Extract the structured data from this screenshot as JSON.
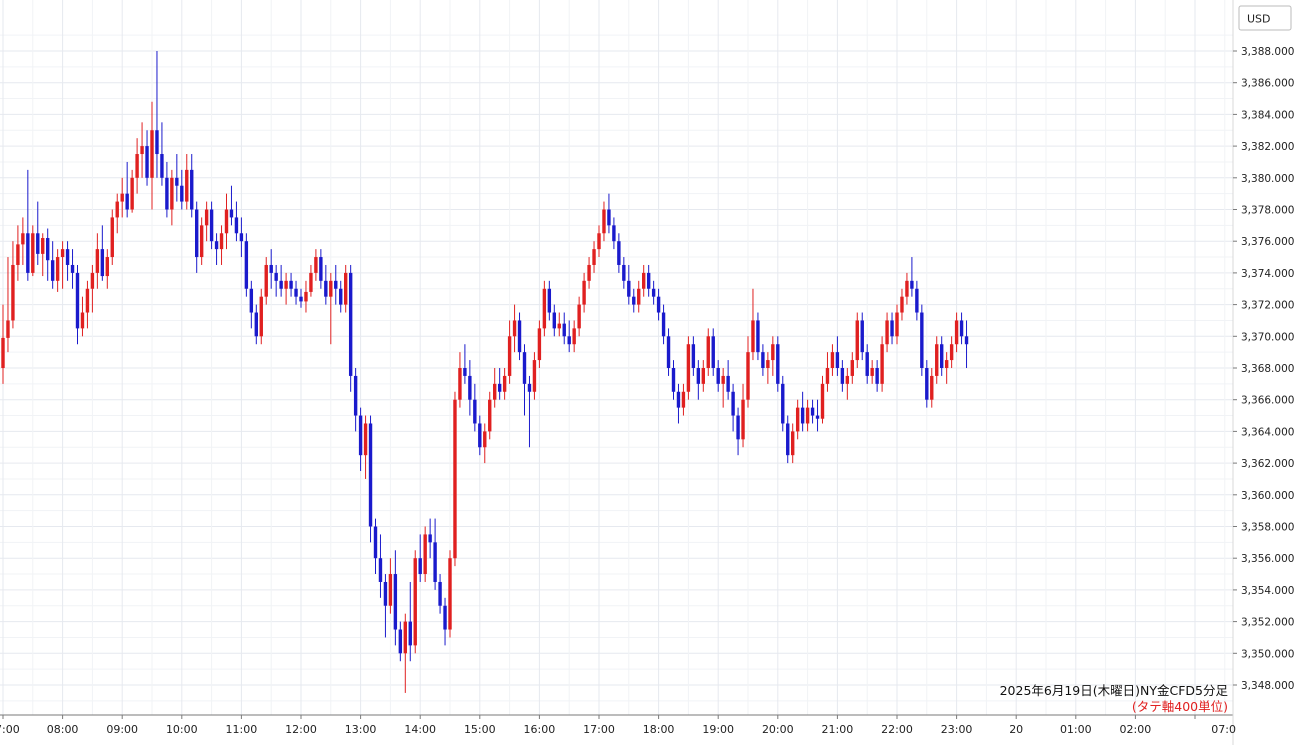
{
  "chart_data": {
    "type": "candlestick",
    "currency_label": "USD",
    "caption_line1": "2025年6月19日(木曜日)NY金CFD5分足",
    "caption_line2": "(タテ軸400単位)",
    "y_ticks": [
      "3,348.000",
      "3,350.000",
      "3,352.000",
      "3,354.000",
      "3,356.000",
      "3,358.000",
      "3,360.000",
      "3,362.000",
      "3,364.000",
      "3,366.000",
      "3,368.000",
      "3,370.000",
      "3,372.000",
      "3,374.000",
      "3,376.000",
      "3,378.000",
      "3,380.000",
      "3,382.000",
      "3,384.000",
      "3,386.000",
      "3,388.000"
    ],
    "ylim": [
      3346.7,
      3390.6
    ],
    "x_ticks": [
      "7:00",
      "08:00",
      "09:00",
      "10:00",
      "11:00",
      "12:00",
      "13:00",
      "14:00",
      "15:00",
      "16:00",
      "17:00",
      "18:00",
      "19:00",
      "20:00",
      "21:00",
      "22:00",
      "23:00",
      "20",
      "01:00",
      "02:00",
      "07:0"
    ],
    "up_color": "#e02020",
    "down_color": "#1a1acc",
    "grid": true,
    "candle_interval_minutes": 5,
    "candles": [
      [
        3368.0,
        3372.0,
        3367.0,
        3369.9
      ],
      [
        3369.9,
        3375.0,
        3369.0,
        3371.0
      ],
      [
        3371.0,
        3376.0,
        3370.5,
        3374.5
      ],
      [
        3374.5,
        3377.0,
        3373.5,
        3375.8
      ],
      [
        3375.8,
        3377.5,
        3374.5,
        3376.5
      ],
      [
        3376.5,
        3380.5,
        3373.5,
        3374.0
      ],
      [
        3374.0,
        3377.0,
        3373.8,
        3376.5
      ],
      [
        3376.5,
        3378.5,
        3374.5,
        3375.2
      ],
      [
        3375.2,
        3376.5,
        3373.8,
        3376.2
      ],
      [
        3376.2,
        3376.8,
        3373.5,
        3374.8
      ],
      [
        3374.8,
        3376.0,
        3373.0,
        3373.5
      ],
      [
        3373.5,
        3375.5,
        3372.8,
        3375.0
      ],
      [
        3375.0,
        3376.0,
        3373.0,
        3375.5
      ],
      [
        3375.5,
        3376.0,
        3373.5,
        3374.5
      ],
      [
        3374.5,
        3375.5,
        3373.0,
        3374.0
      ],
      [
        3374.0,
        3374.5,
        3369.5,
        3370.5
      ],
      [
        3370.5,
        3372.5,
        3370.0,
        3371.5
      ],
      [
        3371.5,
        3373.5,
        3370.5,
        3373.0
      ],
      [
        3373.0,
        3374.5,
        3371.5,
        3374.0
      ],
      [
        3374.0,
        3376.5,
        3373.0,
        3375.5
      ],
      [
        3375.5,
        3377.0,
        3373.5,
        3373.8
      ],
      [
        3373.8,
        3375.5,
        3373.0,
        3375.0
      ],
      [
        3375.0,
        3378.0,
        3374.5,
        3377.5
      ],
      [
        3377.5,
        3379.0,
        3376.5,
        3378.5
      ],
      [
        3378.5,
        3380.0,
        3377.5,
        3379.0
      ],
      [
        3379.0,
        3381.0,
        3377.5,
        3378.0
      ],
      [
        3378.0,
        3380.5,
        3377.8,
        3380.0
      ],
      [
        3380.0,
        3382.5,
        3379.0,
        3381.5
      ],
      [
        3381.5,
        3383.5,
        3380.0,
        3382.0
      ],
      [
        3382.0,
        3383.0,
        3379.5,
        3380.0
      ],
      [
        3380.0,
        3384.8,
        3378.0,
        3383.0
      ],
      [
        3383.0,
        3388.0,
        3380.0,
        3381.5
      ],
      [
        3381.5,
        3383.5,
        3379.5,
        3380.0
      ],
      [
        3380.0,
        3381.0,
        3377.5,
        3378.0
      ],
      [
        3378.0,
        3380.5,
        3377.0,
        3380.0
      ],
      [
        3380.0,
        3381.5,
        3378.5,
        3379.5
      ],
      [
        3379.5,
        3380.5,
        3378.0,
        3378.5
      ],
      [
        3378.5,
        3381.5,
        3378.0,
        3380.5
      ],
      [
        3380.5,
        3381.5,
        3377.5,
        3378.0
      ],
      [
        3378.0,
        3378.5,
        3374.0,
        3375.0
      ],
      [
        3375.0,
        3377.5,
        3374.5,
        3377.0
      ],
      [
        3377.0,
        3378.5,
        3376.0,
        3378.0
      ],
      [
        3378.0,
        3378.5,
        3375.5,
        3376.0
      ],
      [
        3376.0,
        3376.5,
        3374.5,
        3375.5
      ],
      [
        3375.5,
        3377.0,
        3374.5,
        3376.5
      ],
      [
        3376.5,
        3379.0,
        3375.5,
        3378.0
      ],
      [
        3378.0,
        3379.5,
        3377.0,
        3377.5
      ],
      [
        3377.5,
        3378.5,
        3376.0,
        3376.5
      ],
      [
        3376.5,
        3377.5,
        3375.0,
        3376.0
      ],
      [
        3376.0,
        3376.5,
        3372.5,
        3373.0
      ],
      [
        3373.0,
        3373.5,
        3370.5,
        3371.5
      ],
      [
        3371.5,
        3372.0,
        3369.5,
        3370.0
      ],
      [
        3370.0,
        3373.0,
        3369.5,
        3372.5
      ],
      [
        3372.5,
        3375.0,
        3372.0,
        3374.5
      ],
      [
        3374.5,
        3375.5,
        3373.0,
        3374.0
      ],
      [
        3374.0,
        3374.5,
        3372.5,
        3373.5
      ],
      [
        3373.5,
        3374.5,
        3372.5,
        3373.0
      ],
      [
        3373.0,
        3374.0,
        3372.0,
        3373.5
      ],
      [
        3373.5,
        3374.0,
        3372.5,
        3373.0
      ],
      [
        3373.0,
        3373.5,
        3372.0,
        3372.5
      ],
      [
        3372.5,
        3373.0,
        3371.8,
        3372.2
      ],
      [
        3372.2,
        3373.5,
        3371.5,
        3372.8
      ],
      [
        3372.8,
        3374.5,
        3372.5,
        3374.0
      ],
      [
        3374.0,
        3375.5,
        3373.5,
        3375.0
      ],
      [
        3375.0,
        3375.5,
        3373.0,
        3373.5
      ],
      [
        3373.5,
        3374.5,
        3372.0,
        3372.5
      ],
      [
        3372.5,
        3374.0,
        3369.5,
        3373.5
      ],
      [
        3373.5,
        3374.5,
        3372.0,
        3373.0
      ],
      [
        3373.0,
        3373.5,
        3371.5,
        3372.0
      ],
      [
        3372.0,
        3374.5,
        3371.5,
        3374.0
      ],
      [
        3374.0,
        3374.5,
        3366.5,
        3367.5
      ],
      [
        3367.5,
        3368.0,
        3364.0,
        3365.0
      ],
      [
        3365.0,
        3365.5,
        3361.5,
        3362.5
      ],
      [
        3362.5,
        3365.0,
        3361.0,
        3364.5
      ],
      [
        3364.5,
        3365.0,
        3357.0,
        3358.0
      ],
      [
        3358.0,
        3358.5,
        3355.0,
        3356.0
      ],
      [
        3356.0,
        3357.5,
        3353.5,
        3354.5
      ],
      [
        3354.5,
        3355.0,
        3351.0,
        3353.0
      ],
      [
        3353.0,
        3356.0,
        3352.5,
        3355.0
      ],
      [
        3355.0,
        3356.5,
        3350.5,
        3351.5
      ],
      [
        3351.5,
        3352.0,
        3349.5,
        3350.0
      ],
      [
        3350.0,
        3352.5,
        3347.5,
        3352.0
      ],
      [
        3352.0,
        3354.5,
        3349.5,
        3350.5
      ],
      [
        3350.5,
        3356.5,
        3350.0,
        3356.0
      ],
      [
        3356.0,
        3357.5,
        3354.5,
        3355.0
      ],
      [
        3355.0,
        3358.0,
        3354.5,
        3357.5
      ],
      [
        3357.5,
        3358.5,
        3356.0,
        3357.0
      ],
      [
        3357.0,
        3358.5,
        3354.0,
        3354.5
      ],
      [
        3354.5,
        3355.0,
        3352.5,
        3353.0
      ],
      [
        3353.0,
        3353.5,
        3350.5,
        3351.5
      ],
      [
        3351.5,
        3356.5,
        3351.0,
        3356.0
      ],
      [
        3356.0,
        3366.5,
        3355.5,
        3366.0
      ],
      [
        3366.0,
        3369.0,
        3365.5,
        3368.0
      ],
      [
        3368.0,
        3369.5,
        3367.0,
        3367.5
      ],
      [
        3367.5,
        3368.5,
        3365.0,
        3366.0
      ],
      [
        3366.0,
        3367.0,
        3364.0,
        3364.5
      ],
      [
        3364.5,
        3365.0,
        3362.5,
        3363.0
      ],
      [
        3363.0,
        3364.5,
        3362.0,
        3364.0
      ],
      [
        3364.0,
        3366.5,
        3363.5,
        3366.0
      ],
      [
        3366.0,
        3368.0,
        3365.5,
        3367.0
      ],
      [
        3367.0,
        3368.0,
        3366.0,
        3366.5
      ],
      [
        3366.5,
        3368.0,
        3366.0,
        3367.5
      ],
      [
        3367.5,
        3371.0,
        3367.0,
        3370.0
      ],
      [
        3370.0,
        3372.0,
        3369.0,
        3371.0
      ],
      [
        3371.0,
        3371.5,
        3368.5,
        3369.0
      ],
      [
        3369.0,
        3369.5,
        3365.0,
        3367.0
      ],
      [
        3367.0,
        3367.5,
        3363.0,
        3366.5
      ],
      [
        3366.5,
        3369.0,
        3366.0,
        3368.5
      ],
      [
        3368.5,
        3371.0,
        3368.0,
        3370.5
      ],
      [
        3370.5,
        3373.5,
        3370.0,
        3373.0
      ],
      [
        3373.0,
        3373.5,
        3371.0,
        3371.5
      ],
      [
        3371.5,
        3372.0,
        3370.0,
        3370.5
      ],
      [
        3370.5,
        3371.5,
        3370.0,
        3370.8
      ],
      [
        3370.8,
        3371.5,
        3369.5,
        3370.0
      ],
      [
        3370.0,
        3371.0,
        3369.0,
        3369.5
      ],
      [
        3369.5,
        3371.0,
        3369.0,
        3370.5
      ],
      [
        3370.5,
        3372.5,
        3370.0,
        3372.0
      ],
      [
        3372.0,
        3374.0,
        3371.5,
        3373.5
      ],
      [
        3373.5,
        3375.0,
        3373.0,
        3374.5
      ],
      [
        3374.5,
        3376.0,
        3374.0,
        3375.5
      ],
      [
        3375.5,
        3377.0,
        3375.0,
        3376.5
      ],
      [
        3376.5,
        3378.5,
        3376.0,
        3378.0
      ],
      [
        3378.0,
        3379.0,
        3376.5,
        3377.0
      ],
      [
        3377.0,
        3377.5,
        3375.5,
        3376.0
      ],
      [
        3376.0,
        3376.5,
        3374.0,
        3374.5
      ],
      [
        3374.5,
        3375.0,
        3373.0,
        3373.5
      ],
      [
        3373.5,
        3374.5,
        3372.0,
        3372.5
      ],
      [
        3372.5,
        3373.0,
        3371.5,
        3372.0
      ],
      [
        3372.0,
        3373.5,
        3371.5,
        3373.0
      ],
      [
        3373.0,
        3374.5,
        3372.5,
        3374.0
      ],
      [
        3374.0,
        3374.5,
        3372.5,
        3373.0
      ],
      [
        3373.0,
        3373.5,
        3372.0,
        3372.5
      ],
      [
        3372.5,
        3373.0,
        3371.0,
        3371.5
      ],
      [
        3371.5,
        3372.0,
        3369.5,
        3370.0
      ],
      [
        3370.0,
        3370.5,
        3367.5,
        3368.0
      ],
      [
        3368.0,
        3368.5,
        3366.0,
        3366.5
      ],
      [
        3366.5,
        3367.0,
        3364.5,
        3365.5
      ],
      [
        3365.5,
        3367.0,
        3365.0,
        3366.5
      ],
      [
        3366.5,
        3370.0,
        3366.0,
        3369.5
      ],
      [
        3369.5,
        3370.0,
        3367.5,
        3368.0
      ],
      [
        3368.0,
        3368.5,
        3366.0,
        3367.0
      ],
      [
        3367.0,
        3368.5,
        3366.5,
        3368.0
      ],
      [
        3368.0,
        3370.5,
        3367.5,
        3370.0
      ],
      [
        3370.0,
        3370.5,
        3367.5,
        3368.0
      ],
      [
        3368.0,
        3368.5,
        3366.5,
        3367.0
      ],
      [
        3367.0,
        3368.0,
        3365.5,
        3367.5
      ],
      [
        3367.5,
        3368.5,
        3366.0,
        3366.5
      ],
      [
        3366.5,
        3367.0,
        3364.0,
        3365.0
      ],
      [
        3365.0,
        3365.5,
        3362.5,
        3363.5
      ],
      [
        3363.5,
        3367.0,
        3363.0,
        3366.0
      ],
      [
        3366.0,
        3370.0,
        3365.5,
        3369.0
      ],
      [
        3369.0,
        3373.0,
        3368.5,
        3371.0
      ],
      [
        3371.0,
        3371.5,
        3368.5,
        3369.0
      ],
      [
        3369.0,
        3369.5,
        3367.5,
        3368.0
      ],
      [
        3368.0,
        3369.0,
        3367.0,
        3368.5
      ],
      [
        3368.5,
        3370.0,
        3367.5,
        3369.5
      ],
      [
        3369.5,
        3370.0,
        3366.5,
        3367.0
      ],
      [
        3367.0,
        3367.5,
        3364.0,
        3364.5
      ],
      [
        3364.5,
        3365.0,
        3362.0,
        3362.5
      ],
      [
        3362.5,
        3364.5,
        3362.0,
        3364.0
      ],
      [
        3364.0,
        3366.0,
        3363.5,
        3365.5
      ],
      [
        3365.5,
        3366.5,
        3364.0,
        3364.5
      ],
      [
        3364.5,
        3366.0,
        3364.0,
        3365.5
      ],
      [
        3365.5,
        3366.0,
        3364.5,
        3365.0
      ],
      [
        3365.0,
        3366.0,
        3364.0,
        3364.8
      ],
      [
        3364.8,
        3367.5,
        3364.5,
        3367.0
      ],
      [
        3367.0,
        3369.0,
        3366.5,
        3368.0
      ],
      [
        3368.0,
        3369.5,
        3367.5,
        3369.0
      ],
      [
        3369.0,
        3370.0,
        3367.5,
        3368.0
      ],
      [
        3368.0,
        3368.5,
        3366.5,
        3367.0
      ],
      [
        3367.0,
        3368.0,
        3366.0,
        3367.5
      ],
      [
        3367.5,
        3369.0,
        3367.0,
        3368.5
      ],
      [
        3368.5,
        3371.5,
        3368.0,
        3371.0
      ],
      [
        3371.0,
        3371.5,
        3368.5,
        3369.0
      ],
      [
        3369.0,
        3369.5,
        3367.0,
        3367.5
      ],
      [
        3367.5,
        3368.5,
        3367.0,
        3368.0
      ],
      [
        3368.0,
        3368.5,
        3366.5,
        3367.0
      ],
      [
        3367.0,
        3370.0,
        3366.5,
        3369.5
      ],
      [
        3369.5,
        3371.5,
        3369.0,
        3371.0
      ],
      [
        3371.0,
        3371.5,
        3369.5,
        3370.0
      ],
      [
        3370.0,
        3372.0,
        3369.5,
        3371.5
      ],
      [
        3371.5,
        3373.0,
        3371.0,
        3372.5
      ],
      [
        3372.5,
        3374.0,
        3372.0,
        3373.5
      ],
      [
        3373.5,
        3375.0,
        3372.5,
        3373.0
      ],
      [
        3373.0,
        3373.5,
        3371.0,
        3371.5
      ],
      [
        3371.5,
        3372.0,
        3367.5,
        3368.0
      ],
      [
        3368.0,
        3368.5,
        3365.5,
        3366.0
      ],
      [
        3366.0,
        3368.0,
        3365.5,
        3367.5
      ],
      [
        3367.5,
        3370.0,
        3367.0,
        3369.5
      ],
      [
        3369.5,
        3370.0,
        3367.5,
        3368.0
      ],
      [
        3368.0,
        3369.0,
        3367.0,
        3368.5
      ],
      [
        3368.5,
        3370.0,
        3368.0,
        3369.5
      ],
      [
        3369.5,
        3371.5,
        3369.0,
        3371.0
      ],
      [
        3371.0,
        3371.5,
        3369.5,
        3370.0
      ],
      [
        3370.0,
        3371.0,
        3368.0,
        3369.5
      ]
    ]
  }
}
